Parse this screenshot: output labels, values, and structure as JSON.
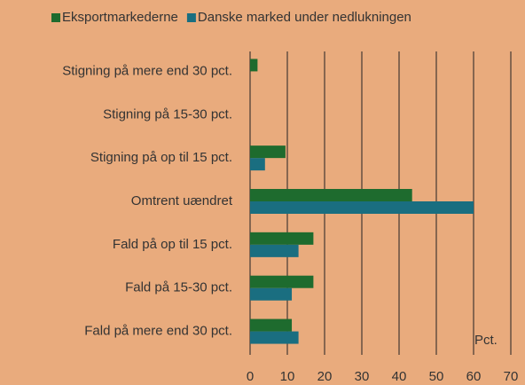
{
  "chart_data": {
    "type": "barh",
    "categories": [
      "Stigning på mere end 30 pct.",
      "Stigning på 15-30 pct.",
      "Stigning på op til 15 pct.",
      "Omtrent uændret",
      "Fald på op til 15 pct.",
      "Fald på 15-30 pct.",
      "Fald på mere end 30 pct."
    ],
    "series": [
      {
        "name": "Eksportmarkederne",
        "color": "#1E6B2E",
        "values": [
          2,
          0,
          9.5,
          43.5,
          17,
          17,
          11.2
        ]
      },
      {
        "name": "Danske marked under nedlukningen",
        "color": "#1A6E80",
        "values": [
          0,
          0,
          4,
          60,
          13,
          11.2,
          13
        ]
      }
    ],
    "xlim": [
      0,
      70
    ],
    "xticks": [
      0,
      10,
      20,
      30,
      40,
      50,
      60,
      70
    ],
    "xlabel": "Pct.",
    "grid": true,
    "legend": "top"
  }
}
